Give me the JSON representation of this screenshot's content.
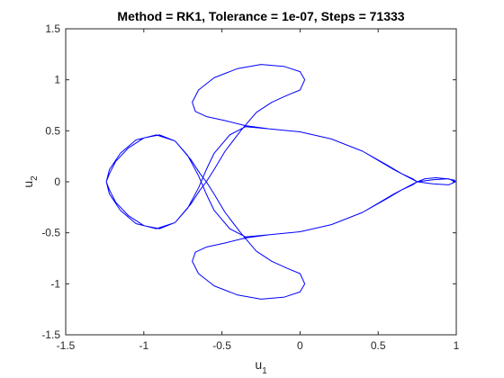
{
  "chart_data": {
    "type": "line",
    "title": "Method = RK1, Tolerance = 1e-07, Steps = 71333",
    "xlabel": "u",
    "xlabel_sub": "1",
    "ylabel": "u",
    "ylabel_sub": "2",
    "xlim": [
      -1.5,
      1
    ],
    "ylim": [
      -1.5,
      1.5
    ],
    "xticks": [
      -1.5,
      -1,
      -0.5,
      0,
      0.5,
      1
    ],
    "xtick_labels": [
      "-1.5",
      "-1",
      "-0.5",
      "0",
      "0.5",
      "1"
    ],
    "yticks": [
      -1.5,
      -1,
      -0.5,
      0,
      0.5,
      1,
      1.5
    ],
    "ytick_labels": [
      "-1.5",
      "-1",
      "-0.5",
      "0",
      "0.5",
      "1",
      "1.5"
    ],
    "grid": false,
    "series": [
      {
        "color": "#0000ff",
        "x": [
          0.994,
          0.95,
          0.85,
          0.75,
          0.6,
          0.4,
          0.2,
          0.0,
          -0.2,
          -0.35,
          -0.45,
          -0.55,
          -0.6,
          -0.65,
          -0.72,
          -0.8,
          -0.9,
          -1.0,
          -1.1,
          -1.18,
          -1.22,
          -1.24,
          -1.22,
          -1.15,
          -1.05,
          -0.92,
          -0.8,
          -0.7,
          -0.64,
          -0.6,
          -0.55,
          -0.48,
          -0.38,
          -0.28,
          -0.18,
          -0.08,
          0.0,
          0.03,
          0.0,
          -0.1,
          -0.25,
          -0.4,
          -0.55,
          -0.65,
          -0.69,
          -0.67,
          -0.6,
          -0.48,
          -0.35,
          -0.2,
          0.0,
          0.2,
          0.4,
          0.55,
          0.65,
          0.72,
          0.75,
          0.8,
          0.87,
          0.94,
          0.99,
          0.994,
          0.95,
          0.85,
          0.75,
          0.72,
          0.65,
          0.55,
          0.4,
          0.2,
          0.0,
          -0.2,
          -0.35,
          -0.48,
          -0.6,
          -0.67,
          -0.69,
          -0.65,
          -0.55,
          -0.4,
          -0.25,
          -0.1,
          0.0,
          0.03,
          0.0,
          -0.08,
          -0.18,
          -0.28,
          -0.38,
          -0.48,
          -0.55,
          -0.6,
          -0.64,
          -0.7,
          -0.8,
          -0.92,
          -1.05,
          -1.15,
          -1.22,
          -1.24,
          -1.22,
          -1.18,
          -1.1,
          -1.0,
          -0.9,
          -0.8,
          -0.72,
          -0.65,
          -0.6,
          -0.55,
          -0.45,
          -0.35,
          -0.2,
          0.0,
          0.2,
          0.4,
          0.6,
          0.75,
          0.85,
          0.95,
          0.994
        ],
        "y": [
          0.0,
          0.03,
          0.02,
          0.0,
          0.12,
          0.3,
          0.42,
          0.49,
          0.52,
          0.54,
          0.46,
          0.28,
          0.12,
          -0.06,
          -0.26,
          -0.4,
          -0.46,
          -0.43,
          -0.33,
          -0.2,
          -0.08,
          0.0,
          0.12,
          0.28,
          0.41,
          0.46,
          0.4,
          0.22,
          0.08,
          0.0,
          -0.12,
          -0.3,
          -0.5,
          -0.68,
          -0.78,
          -0.85,
          -0.9,
          -1.0,
          -1.08,
          -1.13,
          -1.15,
          -1.11,
          -1.02,
          -0.9,
          -0.78,
          -0.69,
          -0.64,
          -0.6,
          -0.55,
          -0.52,
          -0.49,
          -0.42,
          -0.3,
          -0.17,
          -0.08,
          -0.03,
          0.0,
          0.03,
          0.04,
          0.03,
          0.015,
          0.0,
          -0.03,
          -0.02,
          0.0,
          0.03,
          0.08,
          0.17,
          0.3,
          0.42,
          0.49,
          0.52,
          0.55,
          0.6,
          0.64,
          0.69,
          0.78,
          0.9,
          1.02,
          1.11,
          1.15,
          1.13,
          1.08,
          1.0,
          0.9,
          0.85,
          0.78,
          0.68,
          0.5,
          0.3,
          0.12,
          0.0,
          -0.08,
          -0.22,
          -0.4,
          -0.46,
          -0.41,
          -0.28,
          -0.12,
          0.0,
          0.08,
          0.2,
          0.33,
          0.43,
          0.46,
          0.4,
          0.26,
          0.06,
          -0.12,
          -0.28,
          -0.46,
          -0.54,
          -0.52,
          -0.49,
          -0.42,
          -0.3,
          -0.12,
          0.0,
          -0.02,
          -0.03,
          0.0
        ]
      }
    ]
  }
}
